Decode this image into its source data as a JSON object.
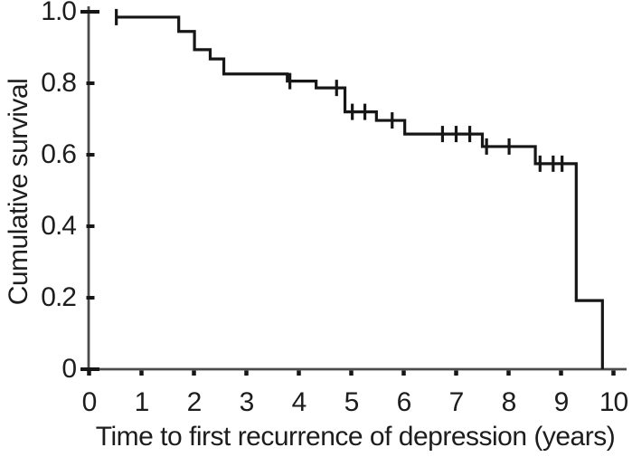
{
  "figure": {
    "background_color": "#ffffff",
    "curve_color": "#161616",
    "axis_color": "#4c4c4c",
    "tick_color": "#161616",
    "text_color": "#1d1d1d"
  },
  "chart_data": {
    "type": "line",
    "subtype": "kaplan-meier-step-function",
    "title": "",
    "xlabel": "Time to first recurrence of depression (years)",
    "ylabel": "Cumulative survival",
    "xlim": [
      0,
      10
    ],
    "ylim": [
      0,
      1.0
    ],
    "grid": false,
    "legend": null,
    "x_ticks": [
      0,
      1,
      2,
      3,
      4,
      5,
      6,
      7,
      8,
      9,
      10
    ],
    "x_tick_labels": [
      "0",
      "1",
      "2",
      "3",
      "4",
      "5",
      "6",
      "7",
      "8",
      "9",
      "10"
    ],
    "y_ticks": [
      0,
      0.2,
      0.4,
      0.6,
      0.8,
      1.0
    ],
    "y_tick_labels": [
      "0",
      "0.2",
      "0.4",
      "0.6",
      "0.8",
      "1.0"
    ],
    "series": [
      {
        "name": "cumulative-survival",
        "style": "step",
        "start": [
          0.52,
          0.985
        ],
        "steps": [
          [
            1.71,
            0.945
          ],
          [
            2.01,
            0.894
          ],
          [
            2.31,
            0.868
          ],
          [
            2.57,
            0.826
          ],
          [
            3.78,
            0.806
          ],
          [
            4.33,
            0.787
          ],
          [
            4.88,
            0.72
          ],
          [
            5.48,
            0.696
          ],
          [
            6.02,
            0.658
          ],
          [
            7.5,
            0.623
          ],
          [
            8.51,
            0.575
          ],
          [
            9.29,
            0.192
          ],
          [
            9.79,
            0.0
          ]
        ]
      }
    ],
    "censor_marks": [
      [
        0.52,
        0.985
      ],
      [
        3.83,
        0.806
      ],
      [
        4.72,
        0.787
      ],
      [
        5.02,
        0.72
      ],
      [
        5.26,
        0.72
      ],
      [
        5.78,
        0.696
      ],
      [
        6.74,
        0.658
      ],
      [
        7.0,
        0.658
      ],
      [
        7.26,
        0.658
      ],
      [
        7.58,
        0.623
      ],
      [
        8.01,
        0.623
      ],
      [
        8.6,
        0.575
      ],
      [
        8.85,
        0.575
      ],
      [
        9.02,
        0.575
      ]
    ]
  }
}
